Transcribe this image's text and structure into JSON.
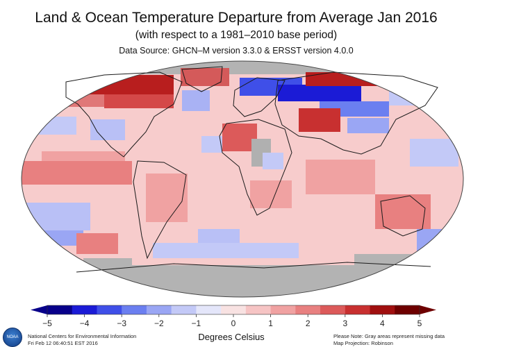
{
  "title": "Land & Ocean Temperature Departure from Average Jan 2016",
  "subtitle": "(with respect to a 1981–2010 base period)",
  "source": "Data Source: GHCN–M version 3.3.0 & ERSST version 4.0.0",
  "colorbar": {
    "ticks": [
      "−5",
      "−4",
      "−3",
      "−2",
      "−1",
      "0",
      "1",
      "2",
      "3",
      "4",
      "5"
    ],
    "tick_values": [
      -5,
      -4,
      -3,
      -2,
      -1,
      0,
      1,
      2,
      3,
      4,
      5
    ],
    "unit": "Degrees Celsius",
    "colors": [
      "#08008a",
      "#1b1bd6",
      "#3f4fe8",
      "#6b7ff0",
      "#9aa6f4",
      "#c3c9f7",
      "#e4e6fa",
      "#f8e2e2",
      "#f6c4c4",
      "#f0a2a2",
      "#e88080",
      "#dc5a5a",
      "#c83030",
      "#a00f0f",
      "#6e0000"
    ]
  },
  "colors": {
    "missing": "#b3b3b3",
    "land_outline": "#1a1a1a"
  },
  "footer": {
    "org": "National Centers for Environmental Information",
    "timestamp": "Fri Feb 12 06:40:51 EST 2016",
    "note": "Please Note: Gray areas represent missing data",
    "projection": "Map Projection: Robinson"
  },
  "logo": {
    "icon": "noaa-logo-icon",
    "text": "NOAA"
  }
}
